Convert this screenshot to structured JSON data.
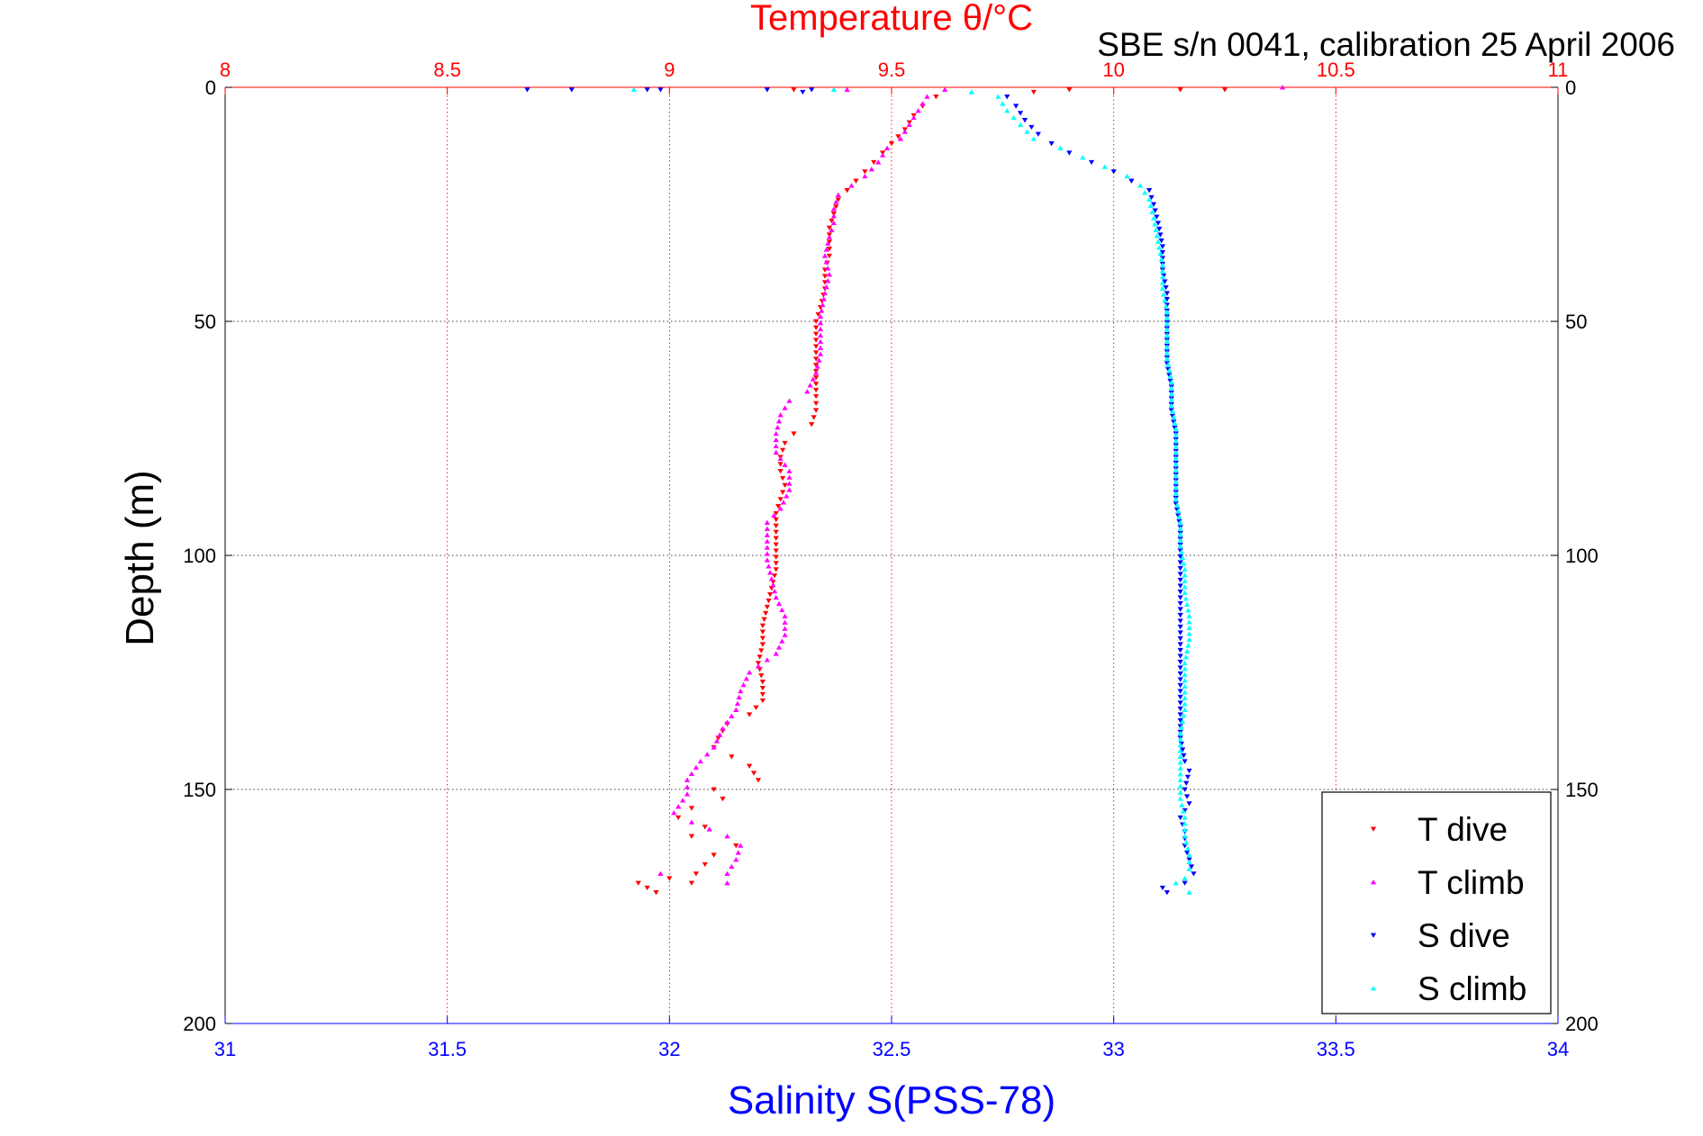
{
  "chart_data": {
    "type": "scatter",
    "title": "Temperature θ/°C",
    "subtitle": "SBE s/n 0041, calibration 25 April 2006",
    "xlabel_bottom": "Salinity S(PSS-78)",
    "xlabel_top": "Temperature θ/°C",
    "ylabel": "Depth (m)",
    "x_bottom_lim": [
      31,
      34
    ],
    "x_top_lim": [
      8,
      11
    ],
    "ylim": [
      0,
      200
    ],
    "y_reversed": true,
    "x_bottom_ticks": [
      "31",
      "31.5",
      "32",
      "32.5",
      "33",
      "33.5",
      "34"
    ],
    "x_top_ticks": [
      "8",
      "8.5",
      "9",
      "9.5",
      "10",
      "10.5",
      "11"
    ],
    "y_ticks": [
      "0",
      "50",
      "100",
      "150",
      "200"
    ],
    "grid": true,
    "legend_position": "bottom-right",
    "colors": {
      "T dive": "#ff0000",
      "T climb": "#ff00ff",
      "S dive": "#0000ff",
      "S climb": "#00ffff"
    },
    "series": [
      {
        "name": "T dive",
        "axis": "top",
        "marker": "triangle-down",
        "points": [
          [
            9.28,
            0.5
          ],
          [
            9.82,
            1
          ],
          [
            9.9,
            0.5
          ],
          [
            10.15,
            0.5
          ],
          [
            10.25,
            0.5
          ],
          [
            9.6,
            2
          ],
          [
            9.57,
            4
          ],
          [
            9.55,
            6
          ],
          [
            9.53,
            9
          ],
          [
            9.5,
            12
          ],
          [
            9.48,
            14
          ],
          [
            9.46,
            16
          ],
          [
            9.44,
            18
          ],
          [
            9.42,
            20
          ],
          [
            9.4,
            22
          ],
          [
            9.38,
            24
          ],
          [
            9.37,
            27
          ],
          [
            9.36,
            30
          ],
          [
            9.36,
            33
          ],
          [
            9.36,
            36
          ],
          [
            9.35,
            39
          ],
          [
            9.35,
            43
          ],
          [
            9.34,
            47
          ],
          [
            9.33,
            50
          ],
          [
            9.33,
            54
          ],
          [
            9.33,
            58
          ],
          [
            9.33,
            62
          ],
          [
            9.33,
            66
          ],
          [
            9.33,
            69
          ],
          [
            9.32,
            72
          ],
          [
            9.28,
            74
          ],
          [
            9.26,
            76
          ],
          [
            9.25,
            79
          ],
          [
            9.25,
            82
          ],
          [
            9.26,
            85
          ],
          [
            9.25,
            88
          ],
          [
            9.24,
            91
          ],
          [
            9.24,
            95
          ],
          [
            9.24,
            99
          ],
          [
            9.24,
            103
          ],
          [
            9.23,
            107
          ],
          [
            9.22,
            111
          ],
          [
            9.21,
            115
          ],
          [
            9.21,
            119
          ],
          [
            9.2,
            123
          ],
          [
            9.21,
            127
          ],
          [
            9.21,
            131
          ],
          [
            9.18,
            134
          ],
          [
            9.13,
            136
          ],
          [
            9.11,
            139
          ],
          [
            9.1,
            141
          ],
          [
            9.14,
            143
          ],
          [
            9.18,
            145
          ],
          [
            9.2,
            148
          ],
          [
            9.1,
            150
          ],
          [
            9.12,
            152
          ],
          [
            9.05,
            154
          ],
          [
            9.02,
            156
          ],
          [
            9.08,
            158
          ],
          [
            9.05,
            160
          ],
          [
            9.15,
            162
          ],
          [
            9.1,
            164
          ],
          [
            9.08,
            166
          ],
          [
            9.06,
            168
          ],
          [
            9.0,
            169
          ],
          [
            8.93,
            170
          ],
          [
            8.95,
            171
          ],
          [
            8.97,
            172
          ],
          [
            9.05,
            170
          ]
        ]
      },
      {
        "name": "T climb",
        "axis": "top",
        "marker": "triangle-up",
        "points": [
          [
            9.62,
            0.5
          ],
          [
            10.38,
            0
          ],
          [
            9.4,
            0.5
          ],
          [
            9.58,
            2
          ],
          [
            9.56,
            5
          ],
          [
            9.54,
            8
          ],
          [
            9.52,
            11
          ],
          [
            9.49,
            13
          ],
          [
            9.47,
            16
          ],
          [
            9.44,
            19
          ],
          [
            9.41,
            21
          ],
          [
            9.38,
            23
          ],
          [
            9.37,
            26
          ],
          [
            9.37,
            29
          ],
          [
            9.36,
            32
          ],
          [
            9.35,
            36
          ],
          [
            9.36,
            40
          ],
          [
            9.35,
            44
          ],
          [
            9.34,
            49
          ],
          [
            9.34,
            53
          ],
          [
            9.34,
            57
          ],
          [
            9.33,
            61
          ],
          [
            9.31,
            65
          ],
          [
            9.27,
            67
          ],
          [
            9.25,
            70
          ],
          [
            9.24,
            74
          ],
          [
            9.24,
            78
          ],
          [
            9.27,
            82
          ],
          [
            9.27,
            86
          ],
          [
            9.25,
            90
          ],
          [
            9.22,
            93
          ],
          [
            9.22,
            97
          ],
          [
            9.22,
            101
          ],
          [
            9.23,
            105
          ],
          [
            9.24,
            109
          ],
          [
            9.26,
            113
          ],
          [
            9.26,
            117
          ],
          [
            9.24,
            121
          ],
          [
            9.18,
            125
          ],
          [
            9.16,
            129
          ],
          [
            9.15,
            133
          ],
          [
            9.12,
            137
          ],
          [
            9.1,
            141
          ],
          [
            9.07,
            144
          ],
          [
            9.04,
            148
          ],
          [
            9.04,
            151
          ],
          [
            9.01,
            155
          ],
          [
            9.05,
            157
          ],
          [
            9.13,
            160
          ],
          [
            9.16,
            162
          ],
          [
            9.15,
            165
          ],
          [
            9.13,
            168
          ],
          [
            9.13,
            170
          ],
          [
            8.98,
            168
          ]
        ]
      },
      {
        "name": "S dive",
        "axis": "bottom",
        "marker": "triangle-down",
        "points": [
          [
            31.68,
            0.5
          ],
          [
            31.78,
            0.5
          ],
          [
            31.95,
            0.5
          ],
          [
            31.98,
            0.5
          ],
          [
            32.22,
            0.5
          ],
          [
            32.3,
            1
          ],
          [
            32.32,
            0.5
          ],
          [
            32.76,
            2
          ],
          [
            32.78,
            4
          ],
          [
            32.8,
            7
          ],
          [
            32.83,
            10
          ],
          [
            32.86,
            12
          ],
          [
            32.9,
            14
          ],
          [
            32.95,
            16
          ],
          [
            33.0,
            18
          ],
          [
            33.04,
            20
          ],
          [
            33.08,
            22
          ],
          [
            33.09,
            25
          ],
          [
            33.1,
            29
          ],
          [
            33.11,
            34
          ],
          [
            33.11,
            39
          ],
          [
            33.12,
            44
          ],
          [
            33.12,
            49
          ],
          [
            33.12,
            54
          ],
          [
            33.12,
            59
          ],
          [
            33.13,
            64
          ],
          [
            33.13,
            69
          ],
          [
            33.14,
            74
          ],
          [
            33.14,
            79
          ],
          [
            33.14,
            84
          ],
          [
            33.14,
            89
          ],
          [
            33.15,
            94
          ],
          [
            33.15,
            99
          ],
          [
            33.15,
            104
          ],
          [
            33.15,
            109
          ],
          [
            33.15,
            114
          ],
          [
            33.15,
            119
          ],
          [
            33.15,
            124
          ],
          [
            33.15,
            129
          ],
          [
            33.15,
            134
          ],
          [
            33.15,
            139
          ],
          [
            33.16,
            144
          ],
          [
            33.17,
            146
          ],
          [
            33.16,
            150
          ],
          [
            33.17,
            153
          ],
          [
            33.15,
            156
          ],
          [
            33.16,
            159
          ],
          [
            33.16,
            162
          ],
          [
            33.17,
            165
          ],
          [
            33.18,
            168
          ],
          [
            33.16,
            170
          ],
          [
            33.12,
            172
          ],
          [
            33.11,
            171
          ]
        ]
      },
      {
        "name": "S climb",
        "axis": "bottom",
        "marker": "triangle-up",
        "points": [
          [
            31.92,
            0.5
          ],
          [
            32.37,
            0.5
          ],
          [
            32.68,
            1
          ],
          [
            32.74,
            2
          ],
          [
            32.76,
            5
          ],
          [
            32.79,
            8
          ],
          [
            32.82,
            11
          ],
          [
            32.88,
            13
          ],
          [
            32.93,
            15
          ],
          [
            32.98,
            17
          ],
          [
            33.03,
            19
          ],
          [
            33.06,
            21
          ],
          [
            33.08,
            24
          ],
          [
            33.09,
            28
          ],
          [
            33.1,
            33
          ],
          [
            33.11,
            38
          ],
          [
            33.11,
            43
          ],
          [
            33.12,
            48
          ],
          [
            33.12,
            53
          ],
          [
            33.12,
            58
          ],
          [
            33.13,
            63
          ],
          [
            33.13,
            68
          ],
          [
            33.14,
            73
          ],
          [
            33.14,
            78
          ],
          [
            33.14,
            83
          ],
          [
            33.14,
            88
          ],
          [
            33.15,
            93
          ],
          [
            33.15,
            98
          ],
          [
            33.16,
            103
          ],
          [
            33.16,
            108
          ],
          [
            33.17,
            113
          ],
          [
            33.17,
            118
          ],
          [
            33.16,
            123
          ],
          [
            33.16,
            128
          ],
          [
            33.16,
            133
          ],
          [
            33.15,
            138
          ],
          [
            33.15,
            143
          ],
          [
            33.15,
            148
          ],
          [
            33.15,
            152
          ],
          [
            33.16,
            156
          ],
          [
            33.16,
            160
          ],
          [
            33.17,
            164
          ],
          [
            33.17,
            167
          ],
          [
            33.16,
            169
          ],
          [
            33.14,
            170
          ],
          [
            33.17,
            172
          ]
        ]
      }
    ]
  }
}
